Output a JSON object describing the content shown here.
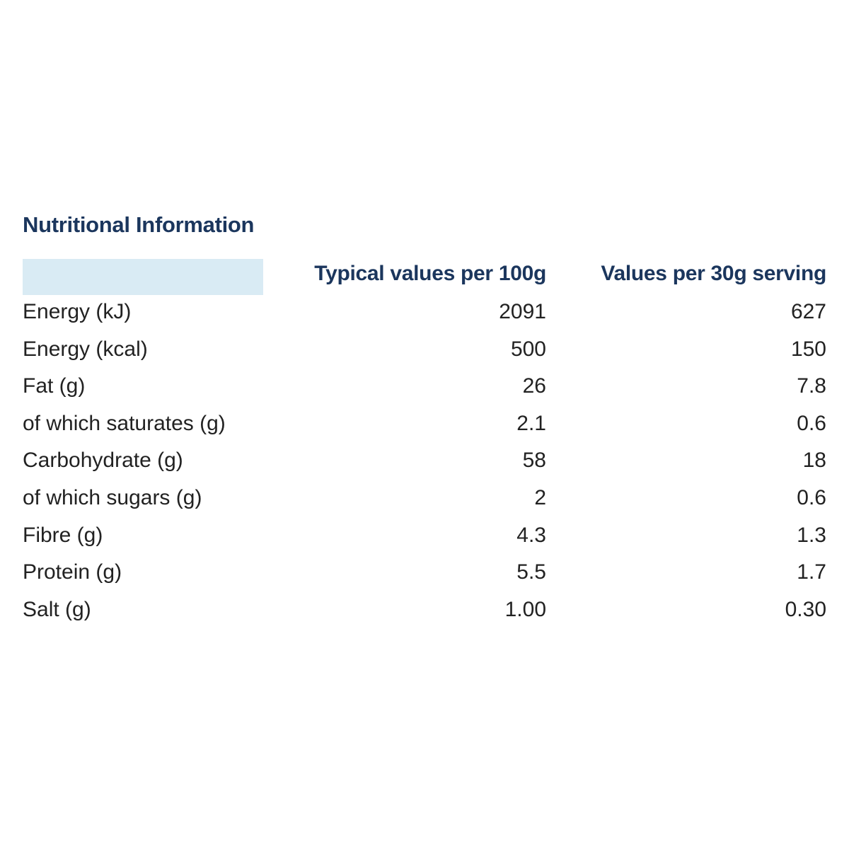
{
  "title": "Nutritional Information",
  "columns": {
    "per_100g": "Typical values per 100g",
    "per_serving": "Values per 30g serving"
  },
  "colors": {
    "heading": "#1b365d",
    "header_swatch": "#d9ebf4",
    "text": "#222222"
  },
  "rows": [
    {
      "label": "Energy (kJ)",
      "per_100g": "2091",
      "per_serving": "627"
    },
    {
      "label": "Energy (kcal)",
      "per_100g": "500",
      "per_serving": "150"
    },
    {
      "label": "Fat (g)",
      "per_100g": "26",
      "per_serving": "7.8"
    },
    {
      "label": "of which saturates (g)",
      "per_100g": "2.1",
      "per_serving": "0.6"
    },
    {
      "label": "Carbohydrate (g)",
      "per_100g": "58",
      "per_serving": "18"
    },
    {
      "label": "of which sugars (g)",
      "per_100g": "2",
      "per_serving": "0.6"
    },
    {
      "label": "Fibre (g)",
      "per_100g": "4.3",
      "per_serving": "1.3"
    },
    {
      "label": "Protein (g)",
      "per_100g": "5.5",
      "per_serving": "1.7"
    },
    {
      "label": "Salt (g)",
      "per_100g": "1.00",
      "per_serving": "0.30"
    }
  ]
}
